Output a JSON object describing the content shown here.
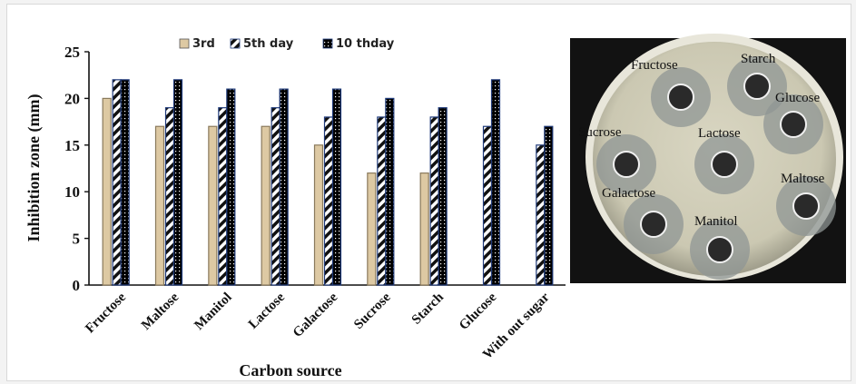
{
  "chart_data": {
    "type": "bar",
    "title": "",
    "xlabel": "Carbon source",
    "ylabel": "Inhibition  zone (mm)",
    "ylim": [
      0,
      25
    ],
    "yticks": [
      0,
      5,
      10,
      15,
      20,
      25
    ],
    "categories": [
      "Fructose",
      "Maltose",
      "Manitol",
      "Lactose",
      "Galactose",
      "Sucrose",
      "Starch",
      "Glucose",
      "With out sugar"
    ],
    "series": [
      {
        "name": "3rd",
        "values": [
          20,
          17,
          17,
          17,
          15,
          12,
          12,
          0,
          0
        ],
        "color": "#ddc9a3"
      },
      {
        "name": "5th day",
        "values": [
          22,
          19,
          19,
          19,
          18,
          18,
          18,
          17,
          15
        ],
        "color": "#1f3a7a",
        "pattern": "diagonal-stripes"
      },
      {
        "name": "10 thday",
        "values": [
          22,
          22,
          21,
          21,
          21,
          20,
          19,
          22,
          17
        ],
        "color": "#000000",
        "pattern": "dotted"
      }
    ],
    "legend": "top",
    "grid": false
  },
  "photo": {
    "labels": [
      "Fructose",
      "Starch",
      "Glucose",
      "Sucrose",
      "Lactose",
      "Maltose",
      "Galactose",
      "Manitol"
    ]
  }
}
